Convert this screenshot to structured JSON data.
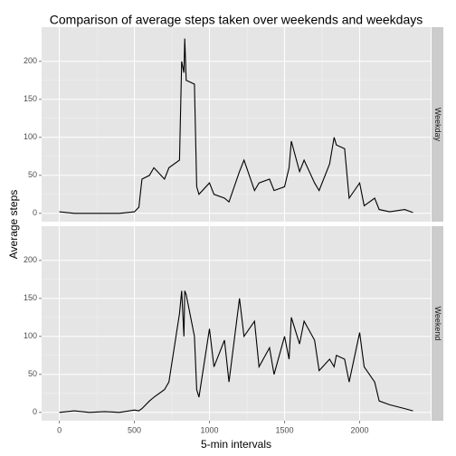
{
  "chart_data": {
    "type": "line",
    "title": "Comparison of average steps taken over weekends and weekdays",
    "x_label": "5-min intervals",
    "y_label": "Average steps",
    "x": [
      0,
      100,
      200,
      300,
      400,
      500,
      530,
      550,
      600,
      630,
      700,
      730,
      800,
      815,
      830,
      835,
      845,
      900,
      915,
      930,
      1000,
      1030,
      1100,
      1130,
      1200,
      1230,
      1300,
      1330,
      1400,
      1430,
      1500,
      1530,
      1545,
      1600,
      1630,
      1700,
      1730,
      1800,
      1830,
      1845,
      1900,
      1930,
      2000,
      2030,
      2100,
      2130,
      2200,
      2300,
      2355
    ],
    "series": [
      {
        "name": "Weekday",
        "color": "#000000",
        "values": [
          2,
          0,
          0,
          0,
          0,
          2,
          8,
          45,
          50,
          60,
          45,
          60,
          70,
          200,
          185,
          230,
          175,
          170,
          35,
          25,
          40,
          25,
          20,
          15,
          55,
          70,
          30,
          40,
          45,
          30,
          35,
          60,
          95,
          55,
          70,
          40,
          30,
          65,
          100,
          90,
          85,
          20,
          40,
          10,
          20,
          5,
          2,
          5,
          1
        ]
      },
      {
        "name": "Weekend",
        "color": "#000000",
        "values": [
          0,
          2,
          0,
          1,
          0,
          3,
          2,
          5,
          15,
          20,
          30,
          40,
          130,
          160,
          100,
          160,
          155,
          100,
          30,
          20,
          110,
          60,
          95,
          40,
          150,
          100,
          120,
          60,
          85,
          50,
          100,
          70,
          125,
          90,
          120,
          95,
          55,
          70,
          60,
          75,
          70,
          40,
          105,
          60,
          40,
          15,
          10,
          5,
          2
        ]
      }
    ],
    "xlim": [
      -118,
      2473
    ],
    "ylim": [
      -11,
      245
    ],
    "xticks": [
      0,
      500,
      1000,
      1500,
      2000
    ],
    "yticks": [
      0,
      50,
      100,
      150,
      200
    ],
    "grid": true
  }
}
